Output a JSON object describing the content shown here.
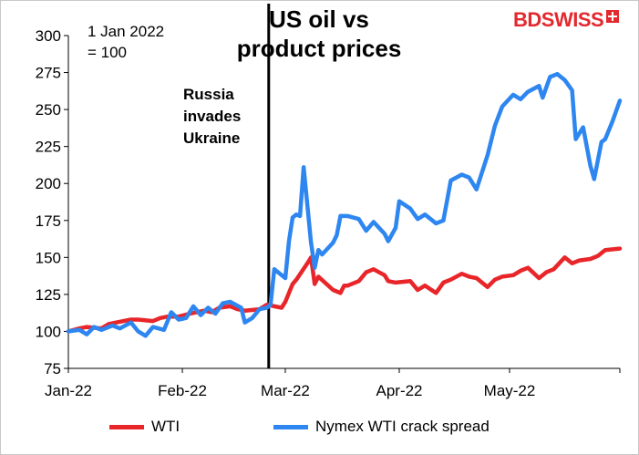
{
  "title_line1": "US oil vs",
  "title_line2": "product prices",
  "note_line1": "1 Jan 2022",
  "note_line2": "= 100",
  "annotation_line1": "Russia",
  "annotation_line2": "invades",
  "annotation_line3": "Ukraine",
  "logo": "BDSWISS",
  "colors": {
    "wti": "#e8262a",
    "crack": "#2e86f0",
    "axis": "#000000",
    "logo": "#e3282e"
  },
  "chart_data": {
    "type": "line",
    "ylim": [
      75,
      300
    ],
    "yticks": [
      "75",
      "100",
      "125",
      "150",
      "175",
      "200",
      "225",
      "250",
      "275",
      "300"
    ],
    "xlim": [
      "2022-01-01",
      "2022-05-31"
    ],
    "xtick_labels": [
      {
        "date": "2022-01-01",
        "label": "Jan-22"
      },
      {
        "date": "2022-02-01",
        "label": "Feb-22"
      },
      {
        "date": "2022-03-01",
        "label": "Mar-22"
      },
      {
        "date": "2022-04-01",
        "label": "Apr-22"
      },
      {
        "date": "2022-05-01",
        "label": "May-22"
      }
    ],
    "event": {
      "date": "2022-02-24",
      "label": "Russia invades Ukraine"
    },
    "series": [
      {
        "name": "WTI",
        "color": "#e8262a",
        "points": [
          [
            "2022-01-01",
            100
          ],
          [
            "2022-01-04",
            102
          ],
          [
            "2022-01-06",
            103
          ],
          [
            "2022-01-10",
            102
          ],
          [
            "2022-01-12",
            105
          ],
          [
            "2022-01-14",
            106
          ],
          [
            "2022-01-18",
            108
          ],
          [
            "2022-01-20",
            108
          ],
          [
            "2022-01-24",
            107
          ],
          [
            "2022-01-26",
            109
          ],
          [
            "2022-01-28",
            110
          ],
          [
            "2022-01-31",
            110
          ],
          [
            "2022-02-03",
            112
          ],
          [
            "2022-02-07",
            114
          ],
          [
            "2022-02-09",
            113
          ],
          [
            "2022-02-11",
            116
          ],
          [
            "2022-02-14",
            117
          ],
          [
            "2022-02-16",
            115
          ],
          [
            "2022-02-18",
            114
          ],
          [
            "2022-02-22",
            115
          ],
          [
            "2022-02-24",
            118
          ],
          [
            "2022-02-28",
            116
          ],
          [
            "2022-03-01",
            120
          ],
          [
            "2022-03-03",
            132
          ],
          [
            "2022-03-04",
            135
          ],
          [
            "2022-03-07",
            146
          ],
          [
            "2022-03-08",
            150
          ],
          [
            "2022-03-09",
            132
          ],
          [
            "2022-03-10",
            137
          ],
          [
            "2022-03-14",
            128
          ],
          [
            "2022-03-16",
            126
          ],
          [
            "2022-03-17",
            131
          ],
          [
            "2022-03-18",
            131
          ],
          [
            "2022-03-21",
            134
          ],
          [
            "2022-03-23",
            140
          ],
          [
            "2022-03-25",
            142
          ],
          [
            "2022-03-28",
            138
          ],
          [
            "2022-03-29",
            134
          ],
          [
            "2022-03-31",
            133
          ],
          [
            "2022-04-04",
            134
          ],
          [
            "2022-04-06",
            128
          ],
          [
            "2022-04-08",
            131
          ],
          [
            "2022-04-11",
            126
          ],
          [
            "2022-04-13",
            133
          ],
          [
            "2022-04-15",
            135
          ],
          [
            "2022-04-18",
            139
          ],
          [
            "2022-04-20",
            137
          ],
          [
            "2022-04-22",
            136
          ],
          [
            "2022-04-25",
            130
          ],
          [
            "2022-04-27",
            135
          ],
          [
            "2022-04-29",
            137
          ],
          [
            "2022-05-02",
            138
          ],
          [
            "2022-05-04",
            141
          ],
          [
            "2022-05-06",
            143
          ],
          [
            "2022-05-09",
            136
          ],
          [
            "2022-05-11",
            140
          ],
          [
            "2022-05-13",
            142
          ],
          [
            "2022-05-16",
            150
          ],
          [
            "2022-05-18",
            146
          ],
          [
            "2022-05-20",
            148
          ],
          [
            "2022-05-23",
            149
          ],
          [
            "2022-05-25",
            151
          ],
          [
            "2022-05-27",
            155
          ],
          [
            "2022-05-31",
            156
          ]
        ]
      },
      {
        "name": "Nymex WTI crack spread",
        "color": "#2e86f0",
        "points": [
          [
            "2022-01-01",
            100
          ],
          [
            "2022-01-04",
            101
          ],
          [
            "2022-01-06",
            98
          ],
          [
            "2022-01-08",
            103
          ],
          [
            "2022-01-10",
            101
          ],
          [
            "2022-01-13",
            104
          ],
          [
            "2022-01-15",
            102
          ],
          [
            "2022-01-18",
            106
          ],
          [
            "2022-01-20",
            100
          ],
          [
            "2022-01-22",
            97
          ],
          [
            "2022-01-24",
            103
          ],
          [
            "2022-01-27",
            101
          ],
          [
            "2022-01-29",
            113
          ],
          [
            "2022-01-31",
            108
          ],
          [
            "2022-02-02",
            109
          ],
          [
            "2022-02-04",
            117
          ],
          [
            "2022-02-06",
            111
          ],
          [
            "2022-02-08",
            116
          ],
          [
            "2022-02-10",
            112
          ],
          [
            "2022-02-12",
            119
          ],
          [
            "2022-02-14",
            120
          ],
          [
            "2022-02-17",
            116
          ],
          [
            "2022-02-18",
            106
          ],
          [
            "2022-02-20",
            109
          ],
          [
            "2022-02-22",
            115
          ],
          [
            "2022-02-24",
            116
          ],
          [
            "2022-02-25",
            118
          ],
          [
            "2022-02-26",
            142
          ],
          [
            "2022-03-01",
            136
          ],
          [
            "2022-03-02",
            161
          ],
          [
            "2022-03-03",
            177
          ],
          [
            "2022-03-04",
            179
          ],
          [
            "2022-03-05",
            178
          ],
          [
            "2022-03-06",
            211
          ],
          [
            "2022-03-08",
            160
          ],
          [
            "2022-03-09",
            143
          ],
          [
            "2022-03-10",
            155
          ],
          [
            "2022-03-11",
            152
          ],
          [
            "2022-03-14",
            160
          ],
          [
            "2022-03-15",
            165
          ],
          [
            "2022-03-16",
            178
          ],
          [
            "2022-03-18",
            178
          ],
          [
            "2022-03-21",
            176
          ],
          [
            "2022-03-23",
            168
          ],
          [
            "2022-03-25",
            174
          ],
          [
            "2022-03-28",
            166
          ],
          [
            "2022-03-29",
            161
          ],
          [
            "2022-03-31",
            170
          ],
          [
            "2022-04-01",
            188
          ],
          [
            "2022-04-04",
            183
          ],
          [
            "2022-04-06",
            176
          ],
          [
            "2022-04-08",
            179
          ],
          [
            "2022-04-11",
            173
          ],
          [
            "2022-04-13",
            175
          ],
          [
            "2022-04-15",
            202
          ],
          [
            "2022-04-18",
            206
          ],
          [
            "2022-04-20",
            204
          ],
          [
            "2022-04-22",
            196
          ],
          [
            "2022-04-25",
            219
          ],
          [
            "2022-04-27",
            239
          ],
          [
            "2022-04-29",
            252
          ],
          [
            "2022-05-02",
            260
          ],
          [
            "2022-05-04",
            257
          ],
          [
            "2022-05-06",
            262
          ],
          [
            "2022-05-09",
            266
          ],
          [
            "2022-05-10",
            258
          ],
          [
            "2022-05-12",
            272
          ],
          [
            "2022-05-14",
            274
          ],
          [
            "2022-05-16",
            270
          ],
          [
            "2022-05-18",
            263
          ],
          [
            "2022-05-19",
            230
          ],
          [
            "2022-05-21",
            238
          ],
          [
            "2022-05-23",
            212
          ],
          [
            "2022-05-24",
            203
          ],
          [
            "2022-05-26",
            228
          ],
          [
            "2022-05-27",
            230
          ],
          [
            "2022-05-29",
            242
          ],
          [
            "2022-05-31",
            256
          ]
        ]
      }
    ]
  }
}
